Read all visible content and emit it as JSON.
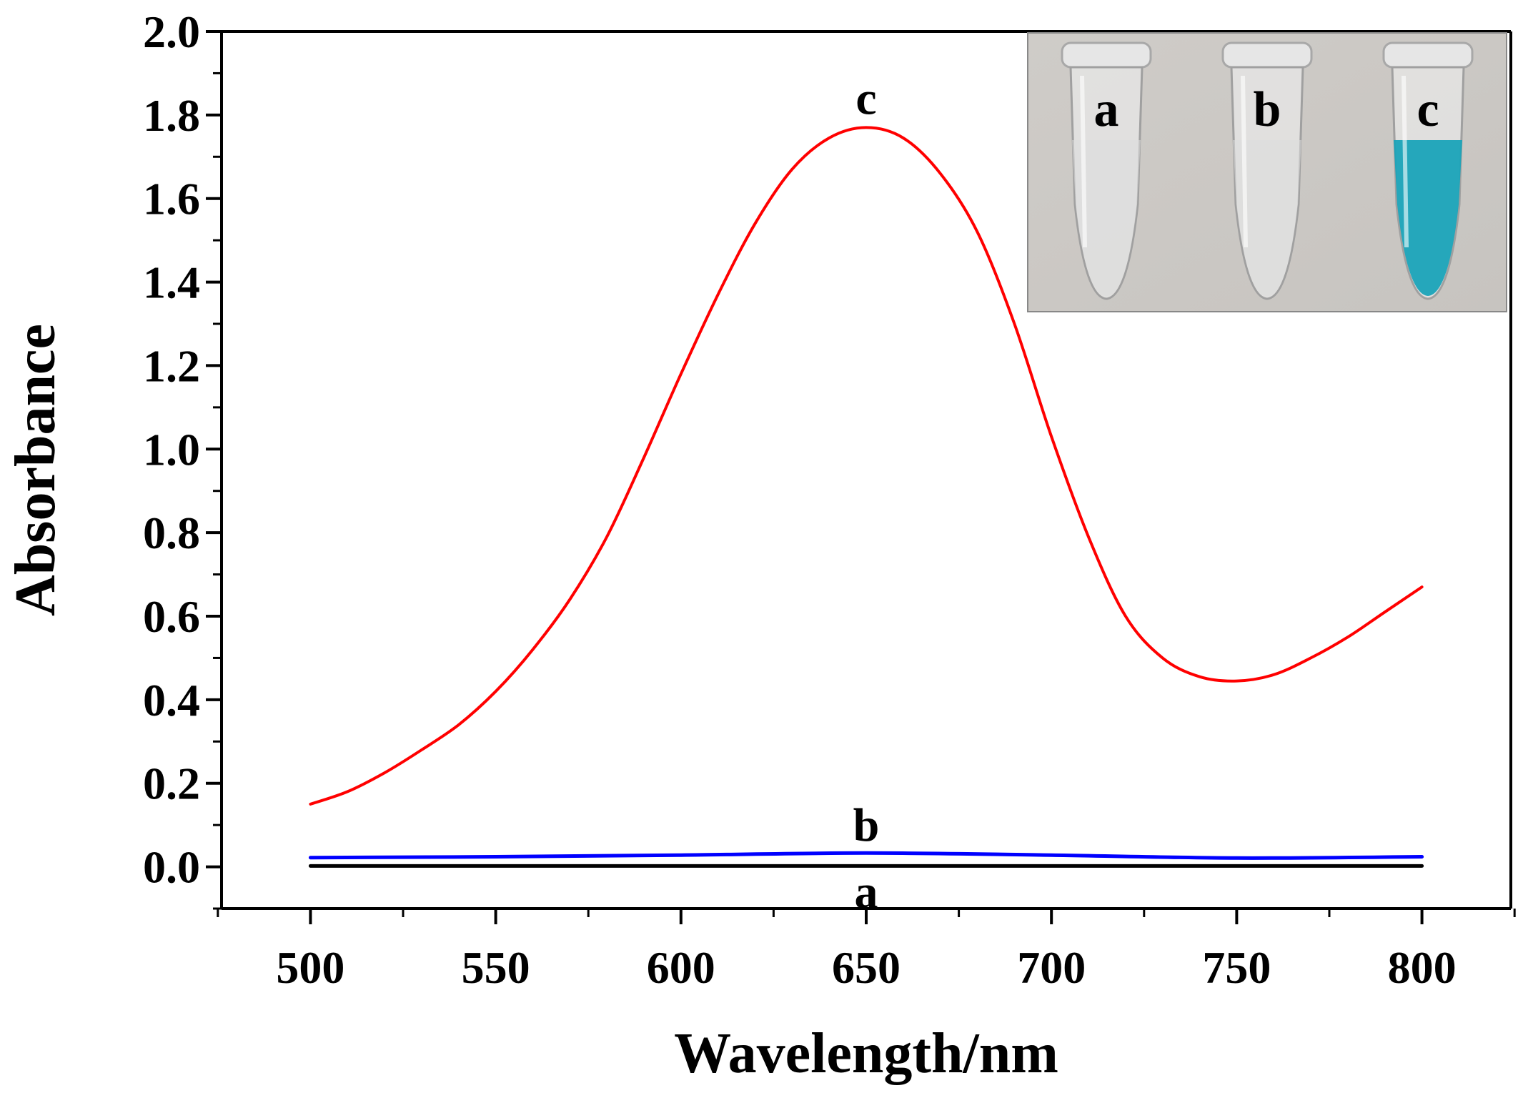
{
  "chart_data": {
    "type": "line",
    "title": "",
    "xlabel": "Wavelength/nm",
    "ylabel": "Absorbance",
    "xlim": [
      476,
      824
    ],
    "ylim": [
      -0.1,
      2.0
    ],
    "x_ticks": [
      500,
      550,
      600,
      650,
      700,
      750,
      800
    ],
    "x_tick_labels": [
      "500",
      "550",
      "600",
      "650",
      "700",
      "750",
      "800"
    ],
    "y_ticks": [
      0.0,
      0.2,
      0.4,
      0.6,
      0.8,
      1.0,
      1.2,
      1.4,
      1.6,
      1.8,
      2.0
    ],
    "y_tick_labels": [
      "0.0",
      "0.2",
      "0.4",
      "0.6",
      "0.8",
      "1.0",
      "1.2",
      "1.4",
      "1.6",
      "1.8",
      "2.0"
    ],
    "grid": false,
    "legend": "none",
    "series": [
      {
        "name": "a",
        "label": "a",
        "color": "#000000",
        "x": [
          500,
          550,
          600,
          650,
          700,
          750,
          800
        ],
        "values": [
          0.002,
          0.002,
          0.002,
          0.002,
          0.002,
          0.002,
          0.002
        ],
        "label_anchor": [
          650,
          -0.06
        ]
      },
      {
        "name": "b",
        "label": "b",
        "color": "#0000ff",
        "x": [
          500,
          550,
          600,
          650,
          700,
          750,
          800
        ],
        "values": [
          0.022,
          0.024,
          0.028,
          0.033,
          0.028,
          0.021,
          0.024
        ],
        "label_anchor": [
          650,
          0.1
        ]
      },
      {
        "name": "c",
        "label": "c",
        "color": "#ff0000",
        "x": [
          500,
          510,
          520,
          530,
          540,
          550,
          560,
          570,
          580,
          590,
          600,
          610,
          620,
          630,
          640,
          650,
          660,
          670,
          680,
          690,
          700,
          710,
          720,
          730,
          740,
          750,
          760,
          770,
          780,
          790,
          800
        ],
        "values": [
          0.15,
          0.18,
          0.225,
          0.28,
          0.34,
          0.42,
          0.52,
          0.64,
          0.79,
          0.98,
          1.18,
          1.37,
          1.54,
          1.67,
          1.745,
          1.77,
          1.745,
          1.66,
          1.52,
          1.3,
          1.03,
          0.79,
          0.6,
          0.5,
          0.455,
          0.445,
          0.46,
          0.5,
          0.55,
          0.61,
          0.67
        ],
        "label_anchor": [
          650,
          1.84
        ]
      }
    ],
    "annotations": [
      "a",
      "b",
      "c"
    ]
  },
  "inset": {
    "tubes": [
      {
        "label": "a",
        "liquid_color": "#dcdcdc"
      },
      {
        "label": "b",
        "liquid_color": "#dcdcdc"
      },
      {
        "label": "c",
        "liquid_color": "#1aa3b8"
      }
    ],
    "background_color": "#c7c4c0"
  },
  "colors": {
    "axis": "#000000",
    "background": "#ffffff"
  }
}
